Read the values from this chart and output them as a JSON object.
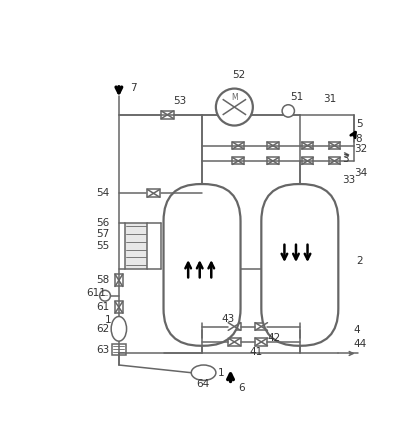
{
  "bg_color": "#ffffff",
  "line_color": "#666666",
  "lw": 1.1,
  "lw_thick": 1.6,
  "figsize": [
    4.19,
    4.43
  ],
  "dpi": 100
}
